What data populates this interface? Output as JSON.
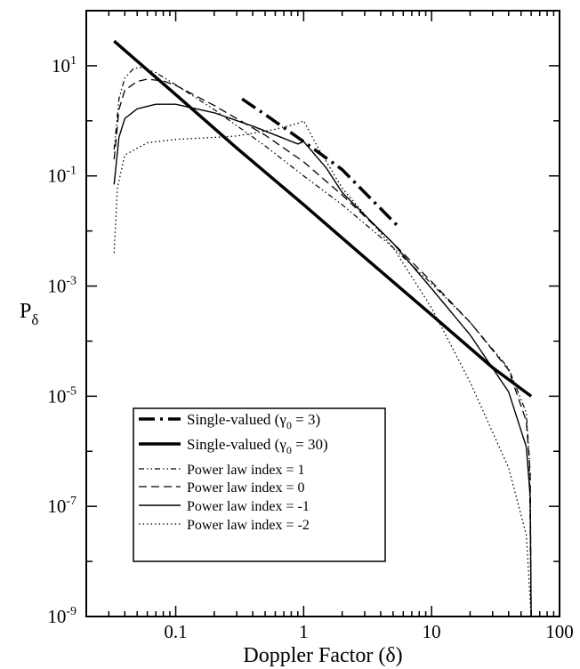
{
  "chart_data": {
    "type": "line",
    "xlabel": "Doppler Factor (δ)",
    "ylabel": "P",
    "ylabel_sub": "δ",
    "x_scale": "log",
    "y_scale": "log",
    "xlim": [
      0.02,
      100
    ],
    "ylim": [
      1e-09,
      100
    ],
    "grid": false,
    "legend_position": "bottom-left",
    "x_ticks": [
      {
        "value": 0.1,
        "label": "0.1"
      },
      {
        "value": 1,
        "label": "1"
      },
      {
        "value": 10,
        "label": "10"
      },
      {
        "value": 100,
        "label": "100"
      }
    ],
    "y_ticks": [
      {
        "value": 1e-09,
        "base": "10",
        "exp": "-9"
      },
      {
        "value": 1e-07,
        "base": "10",
        "exp": "-7"
      },
      {
        "value": 1e-05,
        "base": "10",
        "exp": "-5"
      },
      {
        "value": 0.001,
        "base": "10",
        "exp": "-3"
      },
      {
        "value": 0.1,
        "base": "10",
        "exp": "-1"
      },
      {
        "value": 10,
        "base": "10",
        "exp": "1"
      }
    ],
    "series": [
      {
        "name_pre": "Single-valued (γ",
        "name_sub": "0",
        "name_post": " = 3)",
        "style": "dashdot-thick",
        "points": [
          [
            0.33,
            2.5
          ],
          [
            0.5,
            1.3
          ],
          [
            1.0,
            0.42
          ],
          [
            2.0,
            0.13
          ],
          [
            3.0,
            0.05
          ],
          [
            5.5,
            0.012
          ]
        ]
      },
      {
        "name_pre": "Single-valued (γ",
        "name_sub": "0",
        "name_post": " = 30)",
        "style": "solid-thick",
        "points": [
          [
            0.033,
            28
          ],
          [
            0.1,
            3.0
          ],
          [
            0.3,
            0.32
          ],
          [
            1.0,
            0.03
          ],
          [
            3.0,
            0.0033
          ],
          [
            10.0,
            0.0003
          ],
          [
            30.0,
            3.3e-05
          ],
          [
            60.0,
            1e-05
          ]
        ]
      },
      {
        "name": "Power law index =  1",
        "style": "dashdotdot",
        "points": [
          [
            0.033,
            0.3
          ],
          [
            0.036,
            2.5
          ],
          [
            0.04,
            6.0
          ],
          [
            0.047,
            9.0
          ],
          [
            0.055,
            9.3
          ],
          [
            0.07,
            7.5
          ],
          [
            0.1,
            4.5
          ],
          [
            0.2,
            1.6
          ],
          [
            0.5,
            0.35
          ],
          [
            1.0,
            0.1
          ],
          [
            2.0,
            0.03
          ],
          [
            5.0,
            0.005
          ],
          [
            10.0,
            0.0011
          ],
          [
            20.0,
            0.00022
          ],
          [
            40.0,
            3.2e-05
          ],
          [
            55.0,
            5e-06
          ],
          [
            58.0,
            8e-07
          ],
          [
            60.0,
            1e-09
          ]
        ]
      },
      {
        "name": "Power law index =  0",
        "style": "dashed",
        "points": [
          [
            0.033,
            0.2
          ],
          [
            0.036,
            1.6
          ],
          [
            0.04,
            3.6
          ],
          [
            0.05,
            5.2
          ],
          [
            0.06,
            5.7
          ],
          [
            0.08,
            5.3
          ],
          [
            0.1,
            4.4
          ],
          [
            0.2,
            1.9
          ],
          [
            0.5,
            0.55
          ],
          [
            1.0,
            0.18
          ],
          [
            2.0,
            0.045
          ],
          [
            5.0,
            0.006
          ],
          [
            10.0,
            0.0012
          ],
          [
            20.0,
            0.00022
          ],
          [
            40.0,
            3e-05
          ],
          [
            55.0,
            3.5e-06
          ],
          [
            59.0,
            4e-07
          ],
          [
            60.0,
            1e-09
          ]
        ]
      },
      {
        "name": "Power law index = -1",
        "style": "solid",
        "points": [
          [
            0.033,
            0.07
          ],
          [
            0.036,
            0.5
          ],
          [
            0.04,
            1.1
          ],
          [
            0.05,
            1.65
          ],
          [
            0.07,
            2.0
          ],
          [
            0.1,
            2.0
          ],
          [
            0.2,
            1.4
          ],
          [
            0.4,
            0.8
          ],
          [
            0.7,
            0.48
          ],
          [
            0.9,
            0.38
          ],
          [
            1.0,
            0.42
          ],
          [
            1.5,
            0.14
          ],
          [
            2.0,
            0.05
          ],
          [
            5.0,
            0.006
          ],
          [
            10.0,
            0.0009
          ],
          [
            20.0,
            0.00013
          ],
          [
            40.0,
            1.2e-05
          ],
          [
            55.0,
            1.2e-06
          ],
          [
            59.0,
            1.5e-07
          ],
          [
            60.0,
            1e-09
          ]
        ]
      },
      {
        "name": "Power law index = -2",
        "style": "dotted",
        "points": [
          [
            0.033,
            0.004
          ],
          [
            0.035,
            0.06
          ],
          [
            0.04,
            0.24
          ],
          [
            0.06,
            0.4
          ],
          [
            0.1,
            0.46
          ],
          [
            0.2,
            0.5
          ],
          [
            0.3,
            0.53
          ],
          [
            0.6,
            0.7
          ],
          [
            0.9,
            0.9
          ],
          [
            1.0,
            1.0
          ],
          [
            1.3,
            0.32
          ],
          [
            2.0,
            0.06
          ],
          [
            5.0,
            0.005
          ],
          [
            10.0,
            0.0004
          ],
          [
            20.0,
            1.8e-05
          ],
          [
            40.0,
            5e-07
          ],
          [
            55.0,
            3e-08
          ],
          [
            60.0,
            1e-09
          ]
        ]
      }
    ]
  }
}
